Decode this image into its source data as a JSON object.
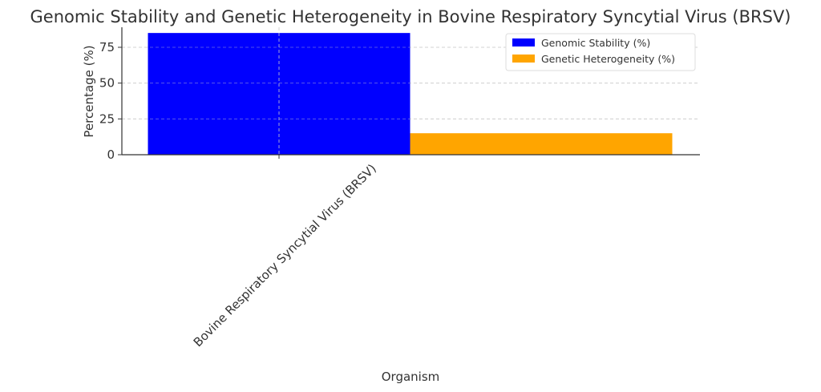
{
  "chart_data": {
    "type": "bar",
    "title": "Genomic Stability and Genetic Heterogeneity in Bovine Respiratory Syncytial Virus (BRSV)",
    "xlabel": "Organism",
    "ylabel": "Percentage (%)",
    "categories": [
      "Bovine Respiratory Syncytial Virus (BRSV)"
    ],
    "series": [
      {
        "name": "Genomic Stability (%)",
        "values": [
          85
        ],
        "color": "#0000ff"
      },
      {
        "name": "Genetic Heterogeneity (%)",
        "values": [
          15
        ],
        "color": "#ffa500"
      }
    ],
    "ylim": [
      0,
      89
    ],
    "yticks": [
      0,
      25,
      50,
      75
    ],
    "grid": true,
    "legend_position": "top-right"
  }
}
